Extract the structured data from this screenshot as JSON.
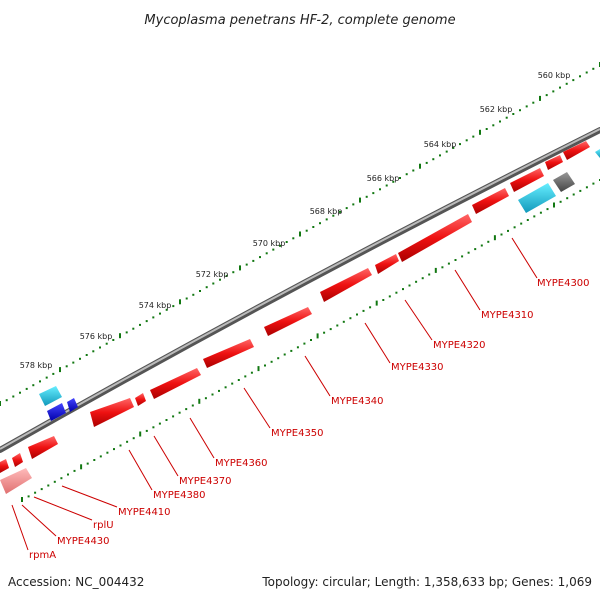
{
  "title": "Mycoplasma penetrans HF-2, complete genome",
  "footer": {
    "accession": "Accession: NC_004432",
    "summary": "Topology: circular; Length: 1,358,633 bp; Genes: 1,069"
  },
  "ruler_labels": [
    "560 kbp",
    "562 kbp",
    "564 kbp",
    "566 kbp",
    "568 kbp",
    "570 kbp",
    "572 kbp",
    "574 kbp",
    "576 kbp",
    "578 kbp"
  ],
  "gene_labels": [
    "MYPE4300",
    "MYPE4310",
    "MYPE4320",
    "MYPE4330",
    "MYPE4340",
    "MYPE4350",
    "MYPE4360",
    "MYPE4370",
    "MYPE4380",
    "MYPE4410",
    "rplU",
    "MYPE4430",
    "rpmA"
  ],
  "colors": {
    "cds_red": "#ee1111",
    "cds_pink": "#f08080",
    "trna_cyan": "#22ccdd",
    "rrna_blue": "#1111cc",
    "misc_gray": "#666666",
    "backbone": "#888888",
    "tick_green": "#117711",
    "label_red": "#cc0000"
  }
}
